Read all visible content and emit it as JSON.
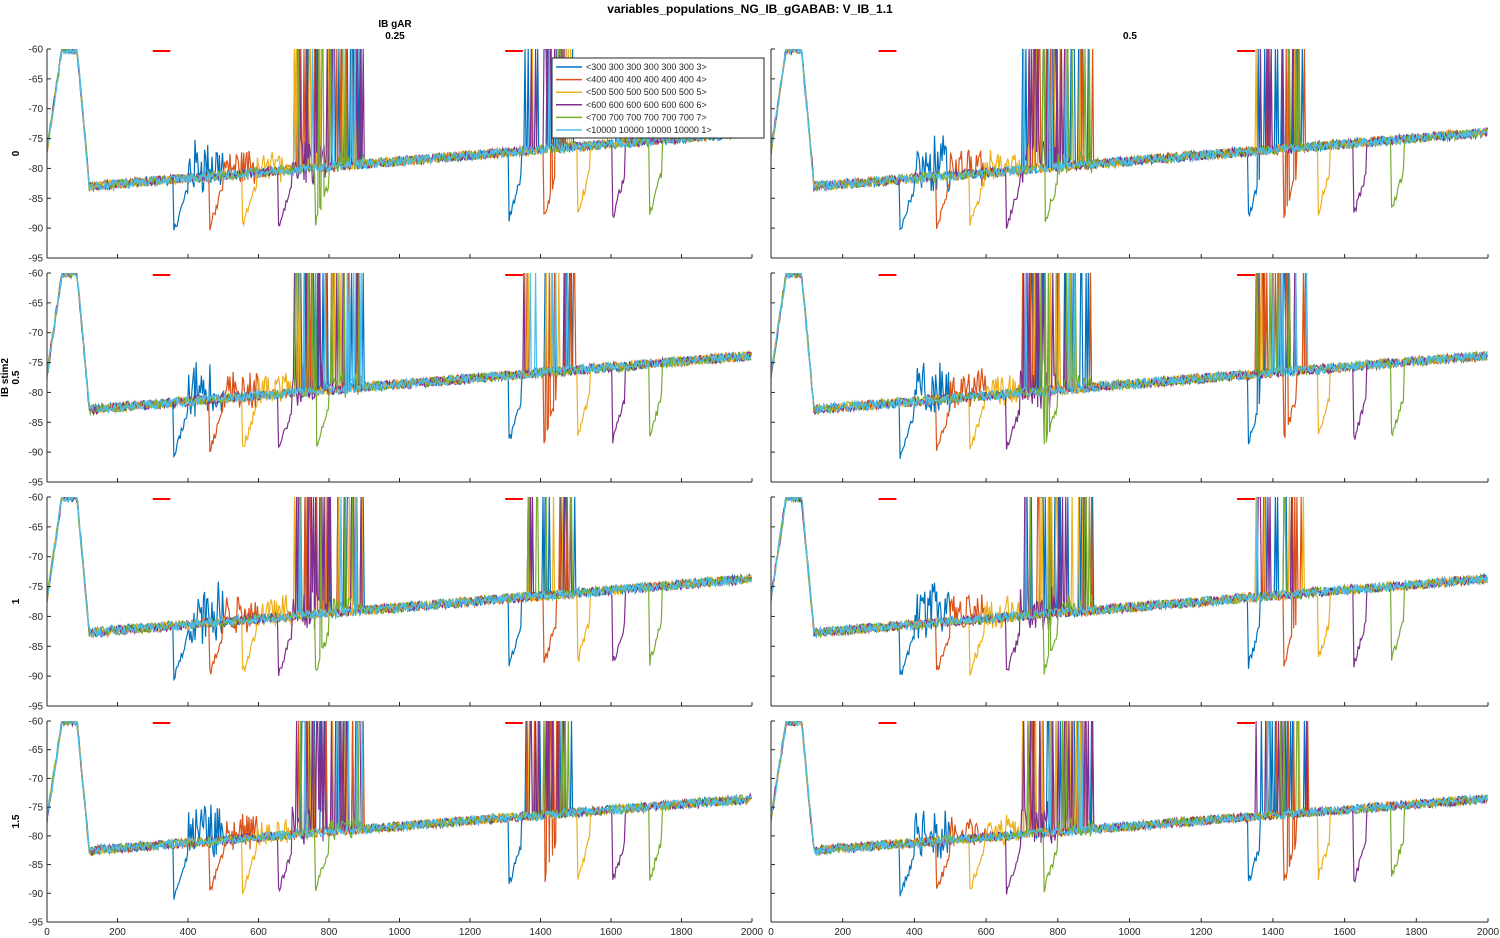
{
  "figure_title": "variables_populations_NG_IB_gGABAB: V_IB_1.1",
  "col_title_1": "IB gAR",
  "col_label_0": "0.25",
  "col_label_1": "0.5",
  "row_var_1": "IB stim2",
  "row_labels": [
    "0",
    "0.5",
    "1",
    "1.5"
  ],
  "colors": {
    "s300": "#0072BD",
    "s400": "#D95319",
    "s500": "#EDB120",
    "s600": "#7E2F8E",
    "s700": "#77AC30",
    "s10000": "#4DBEEE",
    "stim": "#FF0000",
    "axis": "#262626"
  },
  "chart_data": {
    "type": "line",
    "layout": "grid 4x2 small multiples",
    "xlim": [
      0,
      2000
    ],
    "ylim": [
      -95,
      -60
    ],
    "xticks": [
      0,
      200,
      400,
      600,
      800,
      1000,
      1200,
      1400,
      1600,
      1800,
      2000
    ],
    "yticks": [
      -95,
      -90,
      -85,
      -80,
      -75,
      -70,
      -65,
      -60
    ],
    "stim_bars": [
      [
        300,
        350
      ],
      [
        1300,
        1350
      ]
    ],
    "legend": {
      "location": "inside panel (0,0) upper-right",
      "entries": [
        "<300 300 300 300 300 300 3>",
        "<400 400 400 400 400 400 4>",
        "<500 500 500 500 500 500 5>",
        "<600 600 600 600 600 600 6>",
        "<700 700 700 700 700 700 7>",
        "<10000 10000 10000 10000 1>"
      ]
    },
    "series_keys": [
      "s300",
      "s400",
      "s500",
      "s600",
      "s700",
      "s10000"
    ],
    "series_params": [
      {
        "key": "s300",
        "dip_t": 360,
        "dip_v": -90.5,
        "burst": 6
      },
      {
        "key": "s400",
        "dip_t": 460,
        "dip_v": -90,
        "burst": 4
      },
      {
        "key": "s500",
        "dip_t": 555,
        "dip_v": -89.5,
        "burst": 3
      },
      {
        "key": "s600",
        "dip_t": 655,
        "dip_v": -90,
        "burst": 5
      },
      {
        "key": "s700",
        "dip_t": 760,
        "dip_v": -89.5,
        "burst": 2
      },
      {
        "key": "s10000",
        "dip_t": 0,
        "dip_v": -83,
        "burst": 1
      }
    ]
  }
}
